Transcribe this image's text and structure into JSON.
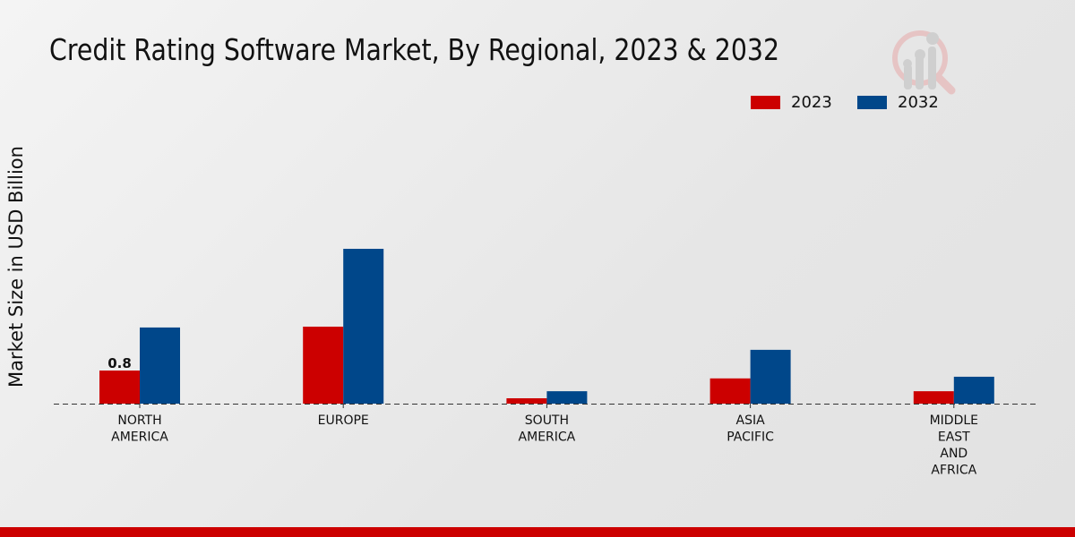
{
  "chart_data": {
    "type": "bar",
    "title": "Credit Rating Software Market, By Regional, 2023 & 2032",
    "xlabel": "",
    "ylabel": "Market Size in USD Billion",
    "categories": [
      [
        "NORTH",
        "AMERICA"
      ],
      [
        "EUROPE"
      ],
      [
        "SOUTH",
        "AMERICA"
      ],
      [
        "ASIA",
        "PACIFIC"
      ],
      [
        "MIDDLE",
        "EAST",
        "AND",
        "AFRICA"
      ]
    ],
    "series": [
      {
        "name": "2023",
        "color": "#cc0000",
        "values": [
          0.8,
          1.86,
          0.13,
          0.61,
          0.3
        ]
      },
      {
        "name": "2032",
        "color": "#00478a",
        "values": [
          1.84,
          3.74,
          0.3,
          1.3,
          0.65
        ]
      }
    ],
    "data_labels": [
      {
        "series": 0,
        "index": 0,
        "text": "0.8"
      }
    ],
    "ylim": [
      0,
      4.5
    ],
    "grid": false,
    "legend_position": "top-right"
  }
}
